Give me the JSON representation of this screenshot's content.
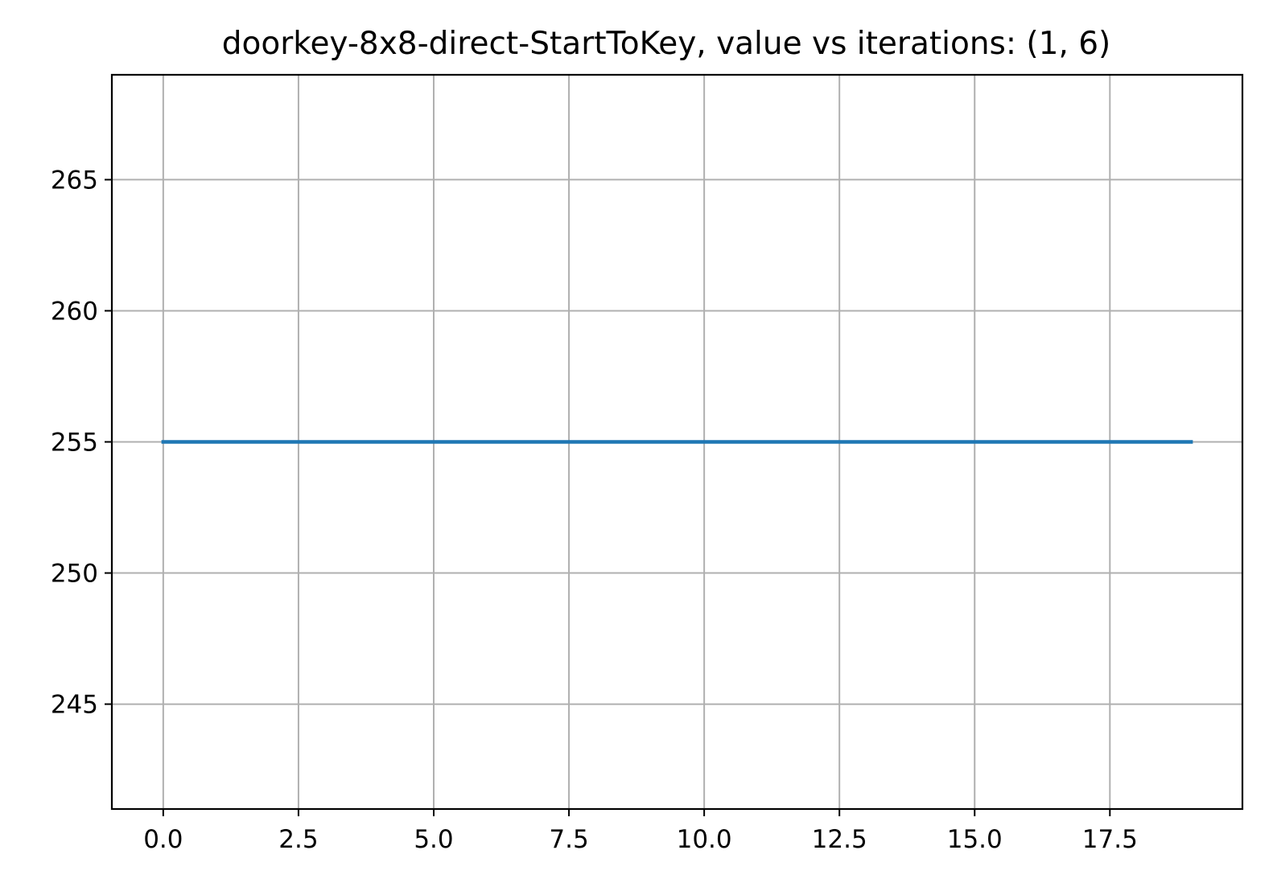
{
  "chart_data": {
    "type": "line",
    "title": "doorkey-8x8-direct-StartToKey, value vs iterations: (1, 6)",
    "xlabel": "",
    "ylabel": "",
    "xlim": [
      -0.95,
      19.95
    ],
    "ylim": [
      241,
      269
    ],
    "xticks": [
      0.0,
      2.5,
      5.0,
      7.5,
      10.0,
      12.5,
      15.0,
      17.5
    ],
    "xtick_labels": [
      "0.0",
      "2.5",
      "5.0",
      "7.5",
      "10.0",
      "12.5",
      "15.0",
      "17.5"
    ],
    "yticks": [
      245,
      250,
      255,
      260,
      265
    ],
    "ytick_labels": [
      "245",
      "250",
      "255",
      "260",
      "265"
    ],
    "grid": true,
    "series": [
      {
        "color": "#1f77b4",
        "x": [
          0,
          1,
          2,
          3,
          4,
          5,
          6,
          7,
          8,
          9,
          10,
          11,
          12,
          13,
          14,
          15,
          16,
          17,
          18,
          19
        ],
        "y": [
          255,
          255,
          255,
          255,
          255,
          255,
          255,
          255,
          255,
          255,
          255,
          255,
          255,
          255,
          255,
          255,
          255,
          255,
          255,
          255
        ]
      }
    ]
  }
}
